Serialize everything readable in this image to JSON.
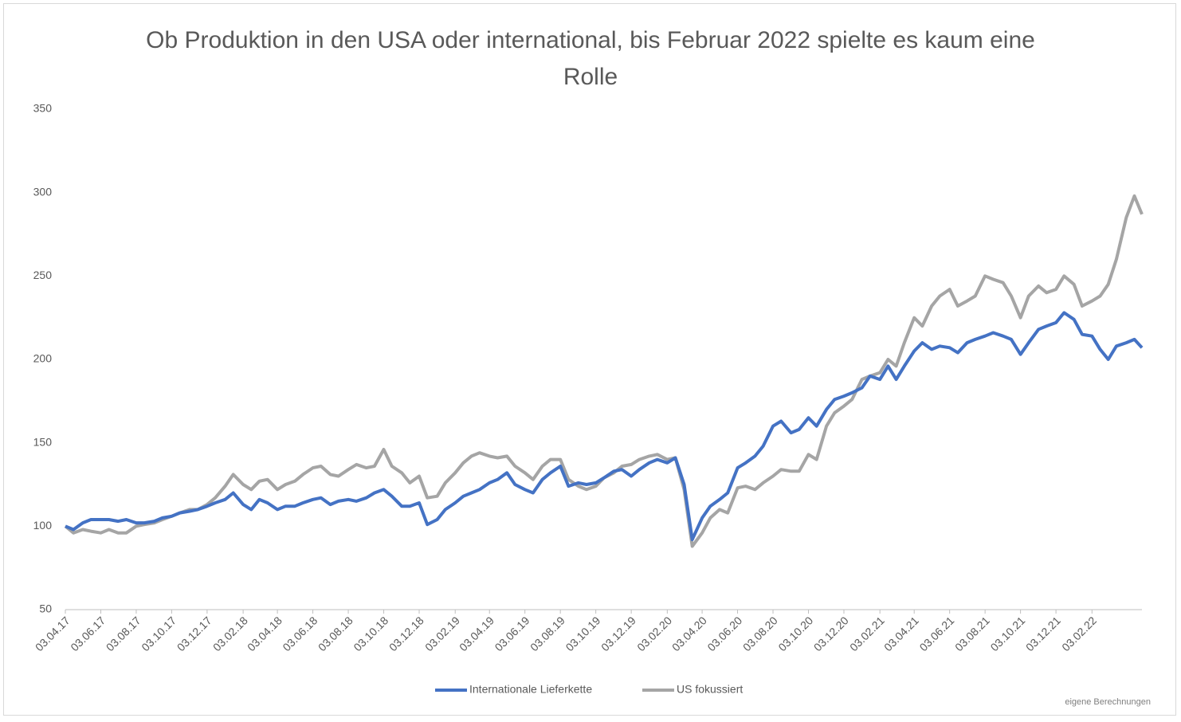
{
  "chart_data": {
    "type": "line",
    "title": "Ob Produktion in den USA oder international, bis Februar 2022 spielte es kaum eine Rolle",
    "annotation": "eigene Berechnungen",
    "x": [
      "03.04.17",
      "17.04.17",
      "03.05.17",
      "17.05.17",
      "03.06.17",
      "17.06.17",
      "03.07.17",
      "17.07.17",
      "03.08.17",
      "17.08.17",
      "03.09.17",
      "17.09.17",
      "03.10.17",
      "17.10.17",
      "03.11.17",
      "17.11.17",
      "03.12.17",
      "17.12.17",
      "03.01.18",
      "17.01.18",
      "03.02.18",
      "17.02.18",
      "03.03.18",
      "17.03.18",
      "03.04.18",
      "17.04.18",
      "03.05.18",
      "17.05.18",
      "03.06.18",
      "17.06.18",
      "03.07.18",
      "17.07.18",
      "03.08.18",
      "17.08.18",
      "03.09.18",
      "17.09.18",
      "03.10.18",
      "17.10.18",
      "03.11.18",
      "17.11.18",
      "03.12.18",
      "17.12.18",
      "03.01.19",
      "17.01.19",
      "03.02.19",
      "17.02.19",
      "03.03.19",
      "17.03.19",
      "03.04.19",
      "17.04.19",
      "03.05.19",
      "17.05.19",
      "03.06.19",
      "17.06.19",
      "03.07.19",
      "17.07.19",
      "03.08.19",
      "17.08.19",
      "03.09.19",
      "17.09.19",
      "03.10.19",
      "17.10.19",
      "03.11.19",
      "17.11.19",
      "03.12.19",
      "17.12.19",
      "03.01.20",
      "17.01.20",
      "03.02.20",
      "17.02.20",
      "03.03.20",
      "17.03.20",
      "03.04.20",
      "17.04.20",
      "03.05.20",
      "17.05.20",
      "03.06.20",
      "17.06.20",
      "03.07.20",
      "17.07.20",
      "03.08.20",
      "17.08.20",
      "03.09.20",
      "17.09.20",
      "03.10.20",
      "17.10.20",
      "03.11.20",
      "17.11.20",
      "03.12.20",
      "17.12.20",
      "03.01.21",
      "17.01.21",
      "03.02.21",
      "17.02.21",
      "03.03.21",
      "17.03.21",
      "03.04.21",
      "17.04.21",
      "03.05.21",
      "17.05.21",
      "03.06.21",
      "17.06.21",
      "03.07.21",
      "17.07.21",
      "03.08.21",
      "17.08.21",
      "03.09.21",
      "17.09.21",
      "03.10.21",
      "17.10.21",
      "03.11.21",
      "17.11.21",
      "03.12.21",
      "17.12.21",
      "03.01.22",
      "17.01.22",
      "03.02.22",
      "17.02.22",
      "03.03.22",
      "17.03.22",
      "03.04.22",
      "17.04.22",
      "30.04.22"
    ],
    "series": [
      {
        "name": "Internationale Lieferkette",
        "color": "#4472c4",
        "values": [
          100,
          98,
          102,
          104,
          104,
          104,
          103,
          104,
          102,
          102,
          103,
          105,
          106,
          108,
          109,
          110,
          112,
          114,
          116,
          120,
          113,
          110,
          116,
          114,
          110,
          112,
          112,
          114,
          116,
          117,
          113,
          115,
          116,
          115,
          117,
          120,
          122,
          118,
          112,
          112,
          114,
          101,
          104,
          110,
          114,
          118,
          120,
          122,
          126,
          128,
          132,
          125,
          122,
          120,
          128,
          132,
          136,
          124,
          126,
          125,
          126,
          129,
          133,
          134,
          130,
          134,
          138,
          140,
          138,
          141,
          125,
          92,
          105,
          112,
          116,
          120,
          135,
          138,
          142,
          148,
          160,
          163,
          156,
          158,
          165,
          160,
          170,
          176,
          178,
          180,
          183,
          190,
          188,
          196,
          188,
          196,
          205,
          210,
          206,
          208,
          207,
          204,
          210,
          212,
          214,
          216,
          214,
          212,
          203,
          210,
          218,
          220,
          222,
          228,
          224,
          215,
          214,
          206,
          200,
          208,
          210,
          212,
          207
        ]
      },
      {
        "name": "US fokussiert",
        "color": "#a5a5a5",
        "values": [
          100,
          96,
          98,
          97,
          96,
          98,
          96,
          96,
          100,
          101,
          102,
          104,
          106,
          108,
          110,
          110,
          113,
          117,
          124,
          131,
          125,
          122,
          127,
          128,
          122,
          125,
          127,
          131,
          135,
          136,
          131,
          130,
          134,
          137,
          135,
          136,
          146,
          136,
          132,
          126,
          130,
          117,
          118,
          126,
          132,
          138,
          142,
          144,
          142,
          141,
          142,
          136,
          132,
          128,
          136,
          140,
          140,
          128,
          124,
          122,
          124,
          129,
          132,
          136,
          137,
          140,
          142,
          143,
          140,
          141,
          122,
          88,
          96,
          105,
          110,
          108,
          123,
          124,
          122,
          126,
          130,
          134,
          133,
          133,
          143,
          140,
          160,
          168,
          172,
          176,
          188,
          190,
          192,
          200,
          196,
          210,
          225,
          220,
          232,
          238,
          242,
          232,
          235,
          238,
          250,
          248,
          246,
          238,
          225,
          238,
          244,
          240,
          242,
          250,
          245,
          232,
          235,
          238,
          245,
          260,
          285,
          298,
          287
        ]
      }
    ],
    "xlim": [
      "03.04.17",
      "30.04.22"
    ],
    "xticks": [
      "03.04.17",
      "03.06.17",
      "03.08.17",
      "03.10.17",
      "03.12.17",
      "03.02.18",
      "03.04.18",
      "03.06.18",
      "03.08.18",
      "03.10.18",
      "03.12.18",
      "03.02.19",
      "03.04.19",
      "03.06.19",
      "03.08.19",
      "03.10.19",
      "03.12.19",
      "03.02.20",
      "03.04.20",
      "03.06.20",
      "03.08.20",
      "03.10.20",
      "03.12.20",
      "03.02.21",
      "03.04.21",
      "03.06.21",
      "03.08.21",
      "03.10.21",
      "03.12.21",
      "03.02.22"
    ],
    "ylim": [
      50,
      350
    ],
    "yticks": [
      50,
      100,
      150,
      200,
      250,
      300,
      350
    ],
    "grid": false,
    "legend": "bottom"
  }
}
